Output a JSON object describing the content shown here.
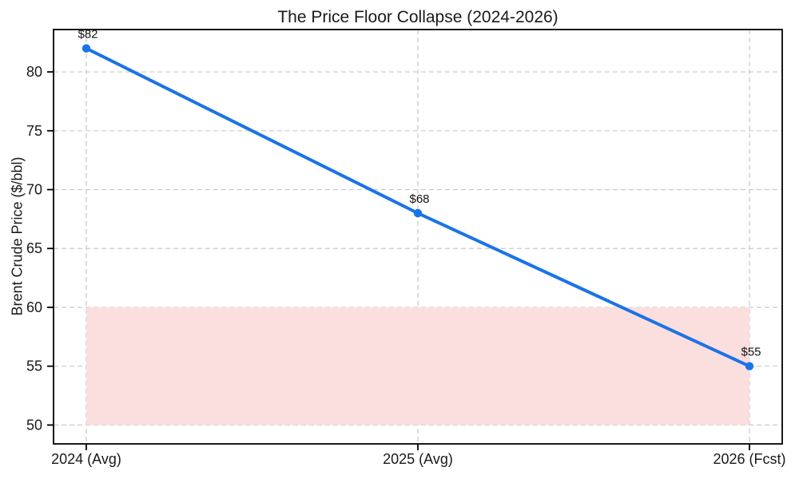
{
  "chart_data": {
    "type": "line",
    "title": "The Price Floor Collapse (2024-2026)",
    "xlabel": "",
    "ylabel": "Brent Crude Price ($/bbl)",
    "categories": [
      "2024 (Avg)",
      "2025 (Avg)",
      "2026 (Fcst)"
    ],
    "values": [
      82,
      68,
      55
    ],
    "point_labels": [
      "$82",
      "$68",
      "$55"
    ],
    "yticks": [
      50,
      55,
      60,
      65,
      70,
      75,
      80
    ],
    "ylim": [
      48.4,
      83.6
    ],
    "grid": "dashed, both axes, light gray",
    "legend": "none",
    "line_color": "#1a73e8",
    "marker": "circle",
    "grid_color": "#c9c9c9",
    "text_color": "#1a1a1a",
    "shaded_band": {
      "ymin": 50,
      "ymax": 60,
      "color": "#fbdede",
      "span": "from first to last x category"
    }
  }
}
